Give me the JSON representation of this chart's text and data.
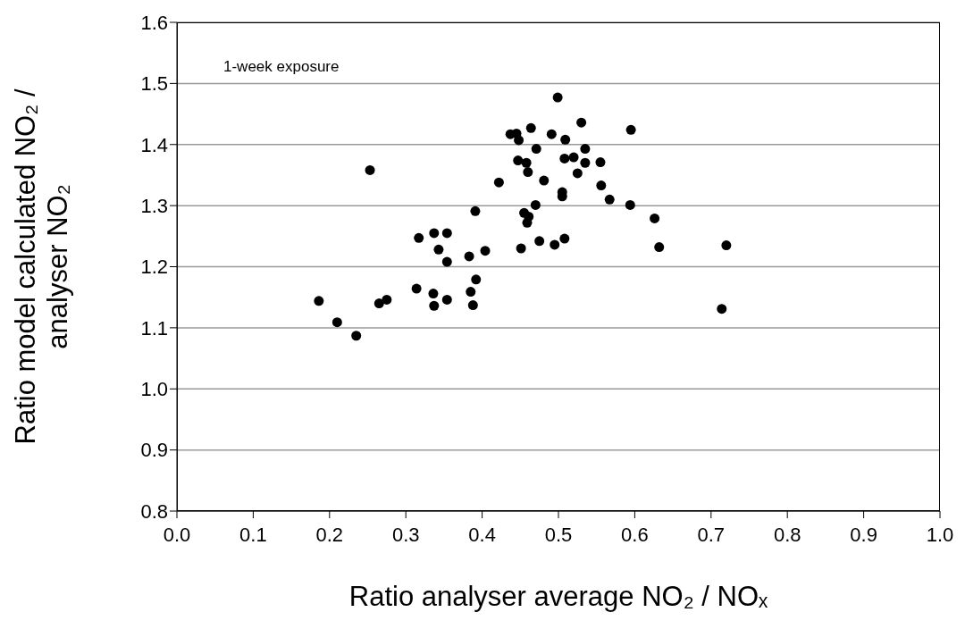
{
  "chart_data": {
    "type": "scatter",
    "xlabel": "Ratio analyser average NO₂ / NOₓ",
    "ylabel": "Ratio model calculated NO₂ / analyser NO₂",
    "annotations": [
      "1-week exposure"
    ],
    "xlim": [
      0,
      1
    ],
    "ylim": [
      0.8,
      1.6
    ],
    "xticks": [
      {
        "value": 0,
        "label": "0.0"
      },
      0.1,
      0.2,
      0.3,
      0.4,
      0.5,
      0.6,
      0.7,
      0.8,
      0.9,
      {
        "value": 1,
        "label": "1.0"
      }
    ],
    "yticks": [
      0.8,
      0.9,
      {
        "value": 1,
        "label": "1.0"
      },
      1.1,
      1.2,
      1.3,
      1.4,
      1.5,
      1.6
    ],
    "grid": "y",
    "marker": "circle",
    "legend": false,
    "series": [
      {
        "color": "#000000",
        "x": [
          0.499,
          0.53,
          0.464,
          0.437,
          0.445,
          0.448,
          0.491,
          0.509,
          0.595,
          0.471,
          0.535,
          0.447,
          0.458,
          0.46,
          0.508,
          0.52,
          0.535,
          0.555,
          0.525,
          0.481,
          0.422,
          0.253,
          0.556,
          0.505,
          0.505,
          0.567,
          0.47,
          0.594,
          0.391,
          0.455,
          0.461,
          0.459,
          0.626,
          0.317,
          0.337,
          0.354,
          0.343,
          0.354,
          0.383,
          0.404,
          0.451,
          0.475,
          0.495,
          0.508,
          0.632,
          0.186,
          0.21,
          0.235,
          0.265,
          0.275,
          0.314,
          0.336,
          0.337,
          0.354,
          0.392,
          0.385,
          0.388,
          0.72,
          0.714
        ],
        "values": [
          1.477,
          1.436,
          1.427,
          1.417,
          1.418,
          1.407,
          1.417,
          1.408,
          1.424,
          1.393,
          1.393,
          1.374,
          1.37,
          1.355,
          1.377,
          1.379,
          1.37,
          1.371,
          1.353,
          1.341,
          1.338,
          1.358,
          1.333,
          1.322,
          1.315,
          1.31,
          1.301,
          1.301,
          1.291,
          1.288,
          1.282,
          1.272,
          1.279,
          1.247,
          1.255,
          1.255,
          1.228,
          1.208,
          1.217,
          1.226,
          1.23,
          1.242,
          1.236,
          1.246,
          1.232,
          1.144,
          1.109,
          1.087,
          1.14,
          1.146,
          1.164,
          1.156,
          1.136,
          1.146,
          1.179,
          1.159,
          1.137,
          1.235,
          1.131
        ]
      }
    ]
  }
}
